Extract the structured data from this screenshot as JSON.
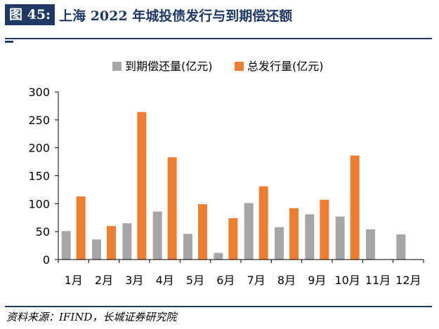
{
  "header": {
    "figure_label": "图 45:",
    "title": "上海 2022 年城投债发行与到期偿还额"
  },
  "footer": {
    "source": "资料来源：IFIND，长城证券研究院"
  },
  "chart_data": {
    "type": "bar",
    "title": "",
    "xlabel": "",
    "ylabel": "",
    "categories": [
      "1月",
      "2月",
      "3月",
      "4月",
      "5月",
      "6月",
      "7月",
      "8月",
      "9月",
      "10月",
      "11月",
      "12月"
    ],
    "series": [
      {
        "name": "到期偿还量(亿元)",
        "color": "#a6a6a6",
        "values": [
          51,
          36,
          65,
          86,
          46,
          12,
          101,
          58,
          81,
          77,
          54,
          45
        ]
      },
      {
        "name": "总发行量(亿元)",
        "color": "#ed7d31",
        "values": [
          113,
          60,
          264,
          183,
          99,
          74,
          131,
          92,
          107,
          186,
          null,
          null
        ]
      }
    ],
    "ylim": [
      0,
      300
    ],
    "yticks": [
      0,
      50,
      100,
      150,
      200,
      250,
      300
    ],
    "grid": false,
    "legend_position": "top"
  }
}
